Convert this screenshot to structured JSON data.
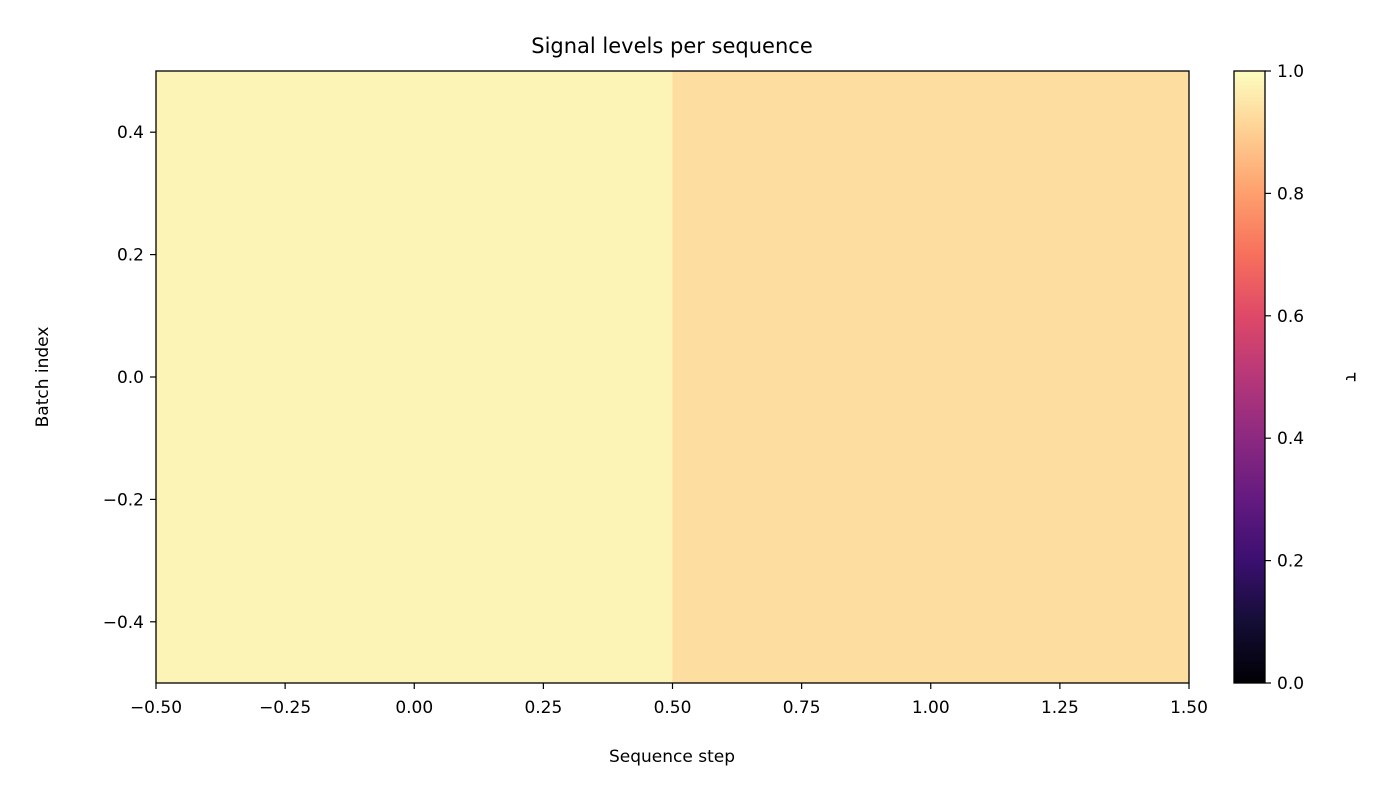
{
  "chart_data": {
    "type": "heatmap",
    "title": "Signal levels per sequence",
    "xlabel": "Sequence step",
    "ylabel": "Batch index",
    "xlim": [
      -0.5,
      1.5
    ],
    "ylim": [
      -0.5,
      0.5
    ],
    "x_ticks": [
      "−0.50",
      "−0.25",
      "0.00",
      "0.25",
      "0.50",
      "0.75",
      "1.00",
      "1.25",
      "1.50"
    ],
    "x_tick_values": [
      -0.5,
      -0.25,
      0.0,
      0.25,
      0.5,
      0.75,
      1.0,
      1.25,
      1.5
    ],
    "y_ticks": [
      "0.4",
      "0.2",
      "0.0",
      "−0.2",
      "−0.4"
    ],
    "y_tick_values": [
      0.4,
      0.2,
      0.0,
      -0.2,
      -0.4
    ],
    "grid": false,
    "colormap": "magma",
    "cells": [
      {
        "x": 0,
        "y": 0,
        "value": 0.98
      },
      {
        "x": 1,
        "y": 0,
        "value": 0.93
      }
    ],
    "colorbar": {
      "label": "τ",
      "range": [
        0.0,
        1.0
      ],
      "ticks": [
        "0.0",
        "0.2",
        "0.4",
        "0.6",
        "0.8",
        "1.0"
      ],
      "tick_values": [
        0.0,
        0.2,
        0.4,
        0.6,
        0.8,
        1.0
      ]
    }
  }
}
